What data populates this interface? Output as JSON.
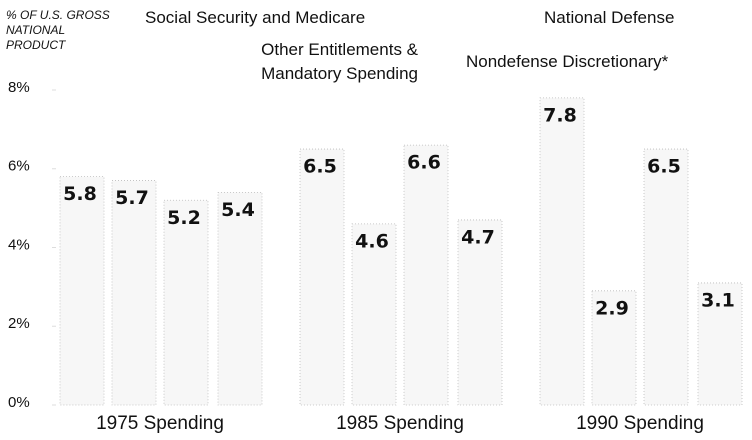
{
  "chart_data": {
    "type": "bar",
    "ylabel": "% OF U.S. GROSS NATIONAL PRODUCT",
    "categories": [
      "1975 Spending",
      "1985 Spending",
      "1990 Spending"
    ],
    "series": [
      {
        "name": "Social Security and Medicare",
        "color": "#f7f7f7",
        "values": [
          5.8,
          6.5,
          7.8
        ]
      },
      {
        "name": "Other Entitlements & Mandatory Spending",
        "color": "#f7f7f7",
        "values": [
          5.7,
          4.6,
          2.9
        ]
      },
      {
        "name": "National Defense",
        "color": "#f7f7f7",
        "values": [
          5.2,
          6.6,
          6.5
        ]
      },
      {
        "name": "Nondefense Discretionary*",
        "color": "#f7f7f7",
        "values": [
          5.4,
          4.7,
          3.1
        ]
      }
    ],
    "ylim": [
      0,
      8
    ],
    "yticks": [
      {
        "value": 0,
        "label": "0%"
      },
      {
        "value": 2,
        "label": "2%"
      },
      {
        "value": 4,
        "label": "4%"
      },
      {
        "value": 6,
        "label": "6%"
      },
      {
        "value": 8,
        "label": "8%"
      }
    ]
  }
}
